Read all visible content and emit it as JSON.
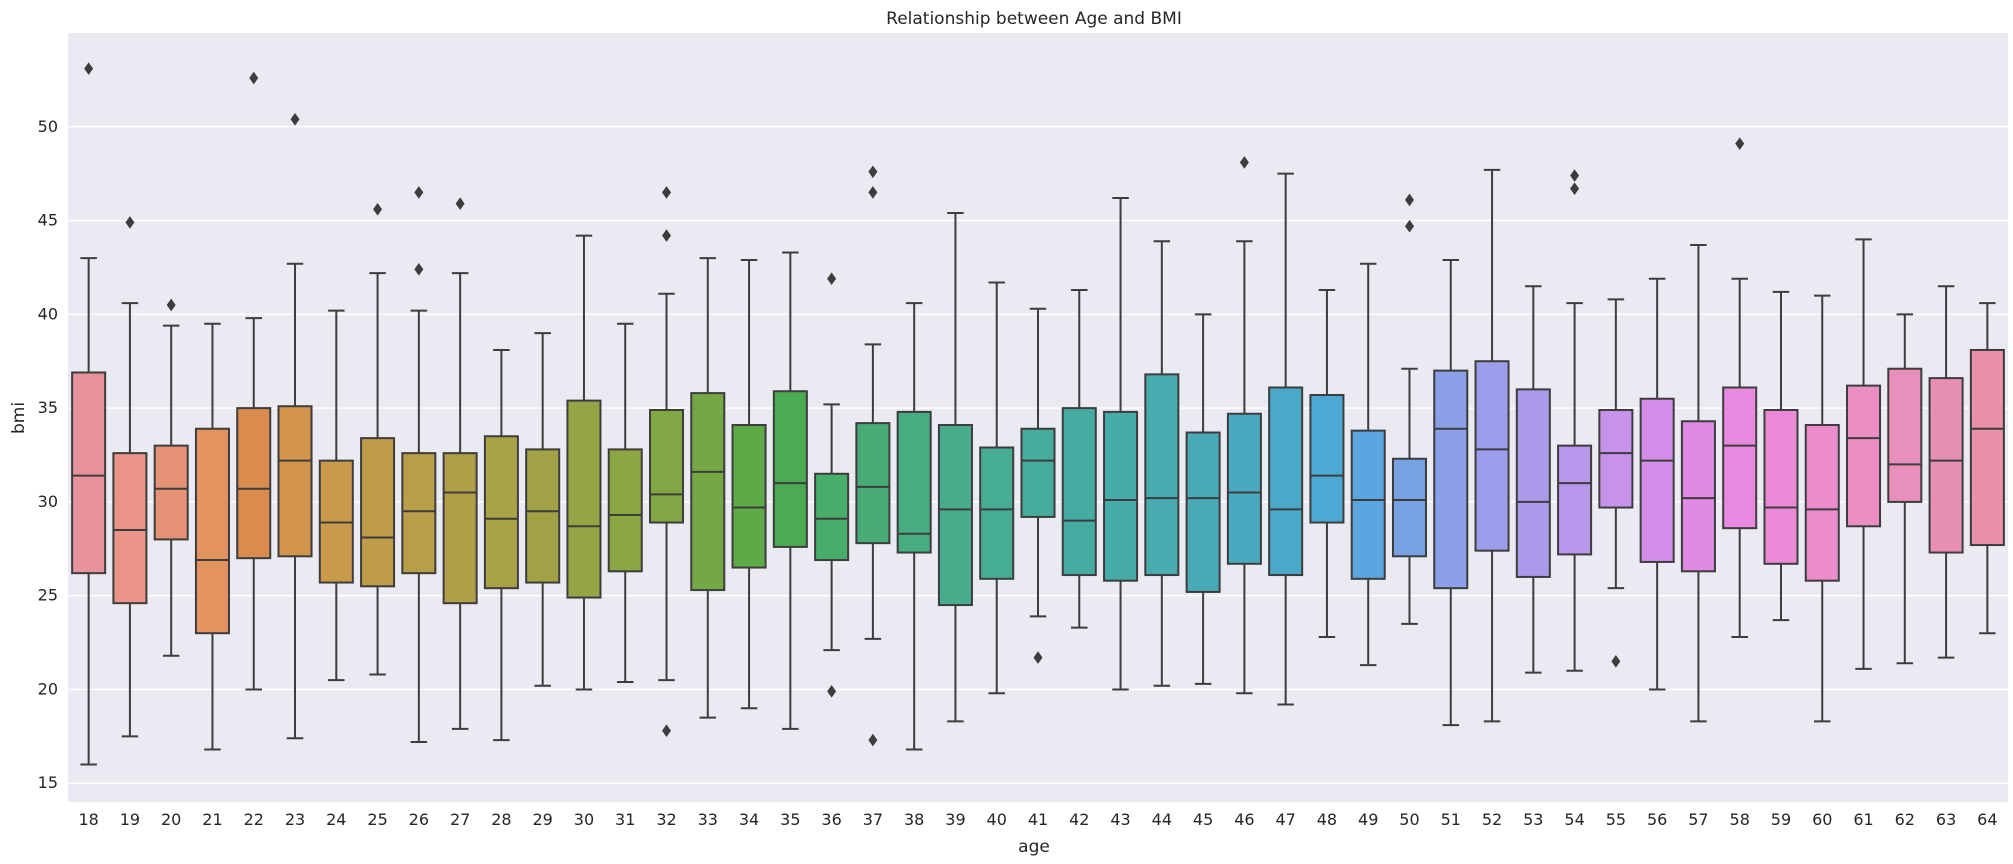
{
  "chart_data": {
    "type": "box",
    "title": "Relationship between Age and BMI",
    "xlabel": "age",
    "ylabel": "bmi",
    "ylim": [
      14,
      55
    ],
    "yticks": [
      15,
      20,
      25,
      30,
      35,
      40,
      45,
      50
    ],
    "grid": true,
    "categories": [
      "18",
      "19",
      "20",
      "21",
      "22",
      "23",
      "24",
      "25",
      "26",
      "27",
      "28",
      "29",
      "30",
      "31",
      "32",
      "33",
      "34",
      "35",
      "36",
      "37",
      "38",
      "39",
      "40",
      "41",
      "42",
      "43",
      "44",
      "45",
      "46",
      "47",
      "48",
      "49",
      "50",
      "51",
      "52",
      "53",
      "54",
      "55",
      "56",
      "57",
      "58",
      "59",
      "60",
      "61",
      "62",
      "63",
      "64"
    ],
    "boxes": [
      {
        "age": "18",
        "whisker_low": 16.0,
        "q1": 26.2,
        "median": 31.4,
        "q3": 36.9,
        "whisker_high": 43.0,
        "outliers": [
          53.1
        ],
        "color": "#e8929b"
      },
      {
        "age": "19",
        "whisker_low": 17.5,
        "q1": 24.6,
        "median": 28.5,
        "q3": 32.6,
        "whisker_high": 40.6,
        "outliers": [
          44.9
        ],
        "color": "#e99487"
      },
      {
        "age": "20",
        "whisker_low": 21.8,
        "q1": 28.0,
        "median": 30.7,
        "q3": 33.0,
        "whisker_high": 39.4,
        "outliers": [
          40.5
        ],
        "color": "#e59276"
      },
      {
        "age": "21",
        "whisker_low": 16.8,
        "q1": 23.0,
        "median": 26.9,
        "q3": 33.9,
        "whisker_high": 39.5,
        "outliers": [],
        "color": "#e3935f"
      },
      {
        "age": "22",
        "whisker_low": 20.0,
        "q1": 27.0,
        "median": 30.7,
        "q3": 35.0,
        "whisker_high": 39.8,
        "outliers": [
          52.6
        ],
        "color": "#d98c4e"
      },
      {
        "age": "23",
        "whisker_low": 17.4,
        "q1": 27.1,
        "median": 32.2,
        "q3": 35.1,
        "whisker_high": 42.7,
        "outliers": [
          50.4
        ],
        "color": "#d4944c"
      },
      {
        "age": "24",
        "whisker_low": 20.5,
        "q1": 25.7,
        "median": 28.9,
        "q3": 32.2,
        "whisker_high": 40.2,
        "outliers": [],
        "color": "#c99a4b"
      },
      {
        "age": "25",
        "whisker_low": 20.8,
        "q1": 25.5,
        "median": 28.1,
        "q3": 33.4,
        "whisker_high": 42.2,
        "outliers": [
          45.6
        ],
        "color": "#c09b4a"
      },
      {
        "age": "26",
        "whisker_low": 17.2,
        "q1": 26.2,
        "median": 29.5,
        "q3": 32.6,
        "whisker_high": 40.2,
        "outliers": [
          42.4,
          46.5
        ],
        "color": "#b89e48"
      },
      {
        "age": "27",
        "whisker_low": 17.9,
        "q1": 24.6,
        "median": 30.5,
        "q3": 32.6,
        "whisker_high": 42.2,
        "outliers": [
          45.9
        ],
        "color": "#b09f47"
      },
      {
        "age": "28",
        "whisker_low": 17.3,
        "q1": 25.4,
        "median": 29.1,
        "q3": 33.5,
        "whisker_high": 38.1,
        "outliers": [],
        "color": "#a9a146"
      },
      {
        "age": "29",
        "whisker_low": 20.2,
        "q1": 25.7,
        "median": 29.5,
        "q3": 32.8,
        "whisker_high": 39.0,
        "outliers": [],
        "color": "#a0a245"
      },
      {
        "age": "30",
        "whisker_low": 20.0,
        "q1": 24.9,
        "median": 28.7,
        "q3": 35.4,
        "whisker_high": 44.2,
        "outliers": [],
        "color": "#96a445"
      },
      {
        "age": "31",
        "whisker_low": 20.4,
        "q1": 26.3,
        "median": 29.3,
        "q3": 32.8,
        "whisker_high": 39.5,
        "outliers": [],
        "color": "#8da644"
      },
      {
        "age": "32",
        "whisker_low": 20.5,
        "q1": 28.9,
        "median": 30.4,
        "q3": 34.9,
        "whisker_high": 41.1,
        "outliers": [
          17.8,
          44.2,
          46.5
        ],
        "color": "#82a744"
      },
      {
        "age": "33",
        "whisker_low": 18.5,
        "q1": 25.3,
        "median": 31.6,
        "q3": 35.8,
        "whisker_high": 43.0,
        "outliers": [],
        "color": "#73a844"
      },
      {
        "age": "34",
        "whisker_low": 19.0,
        "q1": 26.5,
        "median": 29.7,
        "q3": 34.1,
        "whisker_high": 42.9,
        "outliers": [],
        "color": "#5eaa46"
      },
      {
        "age": "35",
        "whisker_low": 17.9,
        "q1": 27.6,
        "median": 31.0,
        "q3": 35.9,
        "whisker_high": 43.3,
        "outliers": [],
        "color": "#4aab53"
      },
      {
        "age": "36",
        "whisker_low": 22.1,
        "q1": 26.9,
        "median": 29.1,
        "q3": 31.5,
        "whisker_high": 35.2,
        "outliers": [
          19.9,
          41.9
        ],
        "color": "#48ac6a"
      },
      {
        "age": "37",
        "whisker_low": 22.7,
        "q1": 27.8,
        "median": 30.8,
        "q3": 34.2,
        "whisker_high": 38.4,
        "outliers": [
          17.3,
          46.5,
          47.6
        ],
        "color": "#48ac78"
      },
      {
        "age": "38",
        "whisker_low": 16.8,
        "q1": 27.3,
        "median": 28.3,
        "q3": 34.8,
        "whisker_high": 40.6,
        "outliers": [],
        "color": "#48ac83"
      },
      {
        "age": "39",
        "whisker_low": 18.3,
        "q1": 24.5,
        "median": 29.6,
        "q3": 34.1,
        "whisker_high": 45.4,
        "outliers": [],
        "color": "#47ac8c"
      },
      {
        "age": "40",
        "whisker_low": 19.8,
        "q1": 25.9,
        "median": 29.6,
        "q3": 32.9,
        "whisker_high": 41.7,
        "outliers": [],
        "color": "#47ac94"
      },
      {
        "age": "41",
        "whisker_low": 23.9,
        "q1": 29.2,
        "median": 32.2,
        "q3": 33.9,
        "whisker_high": 40.3,
        "outliers": [
          21.7
        ],
        "color": "#47ac9b"
      },
      {
        "age": "42",
        "whisker_low": 23.3,
        "q1": 26.1,
        "median": 29.0,
        "q3": 35.0,
        "whisker_high": 41.3,
        "outliers": [],
        "color": "#46aca2"
      },
      {
        "age": "43",
        "whisker_low": 20.0,
        "q1": 25.8,
        "median": 30.1,
        "q3": 34.8,
        "whisker_high": 46.2,
        "outliers": [],
        "color": "#46aca9"
      },
      {
        "age": "44",
        "whisker_low": 20.2,
        "q1": 26.1,
        "median": 30.2,
        "q3": 36.8,
        "whisker_high": 43.9,
        "outliers": [],
        "color": "#47abb0"
      },
      {
        "age": "45",
        "whisker_low": 20.3,
        "q1": 25.2,
        "median": 30.2,
        "q3": 33.7,
        "whisker_high": 40.0,
        "outliers": [],
        "color": "#48aab7"
      },
      {
        "age": "46",
        "whisker_low": 19.8,
        "q1": 26.7,
        "median": 30.5,
        "q3": 34.7,
        "whisker_high": 43.9,
        "outliers": [
          48.1
        ],
        "color": "#49aabf"
      },
      {
        "age": "47",
        "whisker_low": 19.2,
        "q1": 26.1,
        "median": 29.6,
        "q3": 36.1,
        "whisker_high": 47.5,
        "outliers": [],
        "color": "#4aa9c8"
      },
      {
        "age": "48",
        "whisker_low": 22.8,
        "q1": 28.9,
        "median": 31.4,
        "q3": 35.7,
        "whisker_high": 41.3,
        "outliers": [],
        "color": "#4ca9d4"
      },
      {
        "age": "49",
        "whisker_low": 21.3,
        "q1": 25.9,
        "median": 30.1,
        "q3": 33.8,
        "whisker_high": 42.7,
        "outliers": [],
        "color": "#5aa5e0"
      },
      {
        "age": "50",
        "whisker_low": 23.5,
        "q1": 27.1,
        "median": 30.1,
        "q3": 32.3,
        "whisker_high": 37.1,
        "outliers": [
          44.7,
          46.1
        ],
        "color": "#76a2e4"
      },
      {
        "age": "51",
        "whisker_low": 18.1,
        "q1": 25.4,
        "median": 33.9,
        "q3": 37.0,
        "whisker_high": 42.9,
        "outliers": [],
        "color": "#8ba0e7"
      },
      {
        "age": "52",
        "whisker_low": 18.3,
        "q1": 27.4,
        "median": 32.8,
        "q3": 37.5,
        "whisker_high": 47.7,
        "outliers": [],
        "color": "#9c9deb"
      },
      {
        "age": "53",
        "whisker_low": 20.9,
        "q1": 26.0,
        "median": 30.0,
        "q3": 36.0,
        "whisker_high": 41.5,
        "outliers": [],
        "color": "#ab99ec"
      },
      {
        "age": "54",
        "whisker_low": 21.0,
        "q1": 27.2,
        "median": 31.0,
        "q3": 33.0,
        "whisker_high": 40.6,
        "outliers": [
          46.7,
          47.4
        ],
        "color": "#b996ec"
      },
      {
        "age": "55",
        "whisker_low": 25.4,
        "q1": 29.7,
        "median": 32.6,
        "q3": 34.9,
        "whisker_high": 40.8,
        "outliers": [
          21.5
        ],
        "color": "#c792ea"
      },
      {
        "age": "56",
        "whisker_low": 20.0,
        "q1": 26.8,
        "median": 32.2,
        "q3": 35.5,
        "whisker_high": 41.9,
        "outliers": [],
        "color": "#d28ee8"
      },
      {
        "age": "57",
        "whisker_low": 18.3,
        "q1": 26.3,
        "median": 30.2,
        "q3": 34.3,
        "whisker_high": 43.7,
        "outliers": [],
        "color": "#df8ae5"
      },
      {
        "age": "58",
        "whisker_low": 22.8,
        "q1": 28.6,
        "median": 33.0,
        "q3": 36.1,
        "whisker_high": 41.9,
        "outliers": [
          49.1
        ],
        "color": "#e888e0"
      },
      {
        "age": "59",
        "whisker_low": 23.7,
        "q1": 26.7,
        "median": 29.7,
        "q3": 34.9,
        "whisker_high": 41.2,
        "outliers": [],
        "color": "#ea8ad6"
      },
      {
        "age": "60",
        "whisker_low": 18.3,
        "q1": 25.8,
        "median": 29.6,
        "q3": 34.1,
        "whisker_high": 41.0,
        "outliers": [],
        "color": "#eb8ccd"
      },
      {
        "age": "61",
        "whisker_low": 21.1,
        "q1": 28.7,
        "median": 33.4,
        "q3": 36.2,
        "whisker_high": 44.0,
        "outliers": [],
        "color": "#ea8ec4"
      },
      {
        "age": "62",
        "whisker_low": 21.4,
        "q1": 30.0,
        "median": 32.0,
        "q3": 37.1,
        "whisker_high": 40.0,
        "outliers": [],
        "color": "#e98fbb"
      },
      {
        "age": "63",
        "whisker_low": 21.7,
        "q1": 27.3,
        "median": 32.2,
        "q3": 36.6,
        "whisker_high": 41.5,
        "outliers": [],
        "color": "#e890b2"
      },
      {
        "age": "64",
        "whisker_low": 23.0,
        "q1": 27.7,
        "median": 33.9,
        "q3": 38.1,
        "whisker_high": 40.6,
        "outliers": [],
        "color": "#e891a8"
      }
    ],
    "style": {
      "background": "#eaeaf2",
      "grid_color": "#ffffff",
      "line_color": "#3d3d3d"
    }
  }
}
